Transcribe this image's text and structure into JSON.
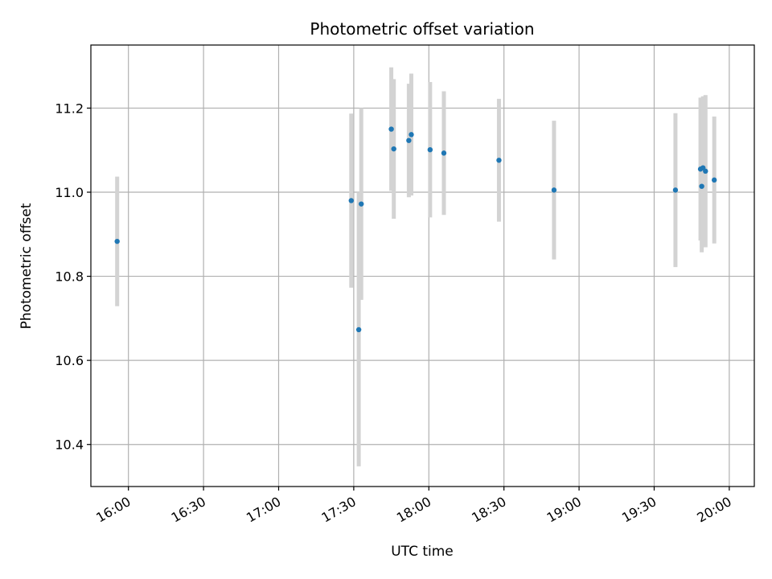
{
  "chart_data": {
    "type": "scatter",
    "title": "Photometric offset variation",
    "xlabel": "UTC time",
    "ylabel": "Photometric offset",
    "grid": true,
    "xlim_minutes": [
      945.0,
      1210.0
    ],
    "ylim": [
      10.3,
      11.35
    ],
    "x_ticks": [
      {
        "minutes": 960,
        "label": "16:00"
      },
      {
        "minutes": 990,
        "label": "16:30"
      },
      {
        "minutes": 1020,
        "label": "17:00"
      },
      {
        "minutes": 1050,
        "label": "17:30"
      },
      {
        "minutes": 1080,
        "label": "18:00"
      },
      {
        "minutes": 1110,
        "label": "18:30"
      },
      {
        "minutes": 1140,
        "label": "19:00"
      },
      {
        "minutes": 1170,
        "label": "19:30"
      },
      {
        "minutes": 1200,
        "label": "20:00"
      }
    ],
    "y_ticks": [
      {
        "value": 10.4,
        "label": "10.4"
      },
      {
        "value": 10.6,
        "label": "10.6"
      },
      {
        "value": 10.8,
        "label": "10.8"
      },
      {
        "value": 11.0,
        "label": "11.0"
      },
      {
        "value": 11.2,
        "label": "11.2"
      }
    ],
    "series": [
      {
        "name": "photometric offset",
        "color": "#1f77b4",
        "errorbar_color": "#d3d3d3",
        "points": [
          {
            "time": "15:56",
            "minutes": 955.5,
            "value": 10.883,
            "error": 0.154
          },
          {
            "time": "17:29",
            "minutes": 1049.0,
            "value": 10.98,
            "error": 0.207
          },
          {
            "time": "17:32",
            "minutes": 1052.0,
            "value": 10.673,
            "error": 0.325
          },
          {
            "time": "17:33",
            "minutes": 1053.0,
            "value": 10.972,
            "error": 0.228
          },
          {
            "time": "17:45",
            "minutes": 1065.0,
            "value": 11.15,
            "error": 0.147
          },
          {
            "time": "17:46",
            "minutes": 1066.0,
            "value": 11.103,
            "error": 0.166
          },
          {
            "time": "17:52",
            "minutes": 1072.0,
            "value": 11.123,
            "error": 0.135
          },
          {
            "time": "17:53",
            "minutes": 1073.0,
            "value": 11.137,
            "error": 0.145
          },
          {
            "time": "18:00",
            "minutes": 1080.5,
            "value": 11.101,
            "error": 0.161
          },
          {
            "time": "18:05",
            "minutes": 1086.0,
            "value": 11.093,
            "error": 0.147
          },
          {
            "time": "18:28",
            "minutes": 1108.0,
            "value": 11.076,
            "error": 0.146
          },
          {
            "time": "18:50",
            "minutes": 1130.0,
            "value": 11.005,
            "error": 0.165
          },
          {
            "time": "19:38",
            "minutes": 1178.5,
            "value": 11.005,
            "error": 0.183
          },
          {
            "time": "19:48",
            "minutes": 1188.5,
            "value": 11.055,
            "error": 0.17
          },
          {
            "time": "19:49",
            "minutes": 1189.0,
            "value": 11.014,
            "error": 0.157
          },
          {
            "time": "19:49",
            "minutes": 1189.5,
            "value": 11.058,
            "error": 0.17
          },
          {
            "time": "19:50",
            "minutes": 1190.5,
            "value": 11.05,
            "error": 0.181
          },
          {
            "time": "19:54",
            "minutes": 1194.0,
            "value": 11.029,
            "error": 0.151
          }
        ]
      }
    ]
  }
}
